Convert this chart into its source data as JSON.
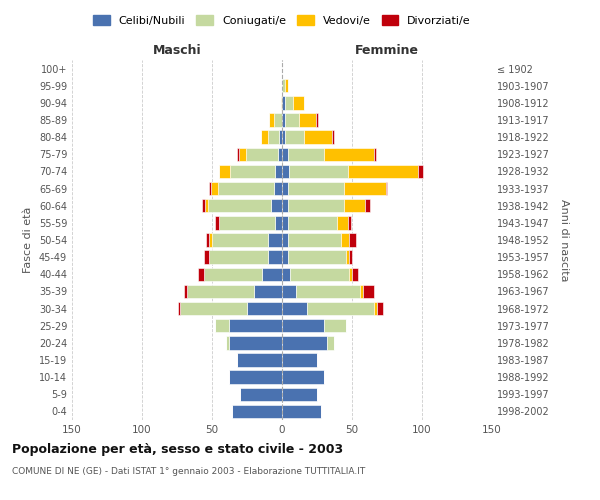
{
  "age_groups": [
    "0-4",
    "5-9",
    "10-14",
    "15-19",
    "20-24",
    "25-29",
    "30-34",
    "35-39",
    "40-44",
    "45-49",
    "50-54",
    "55-59",
    "60-64",
    "65-69",
    "70-74",
    "75-79",
    "80-84",
    "85-89",
    "90-94",
    "95-99",
    "100+"
  ],
  "birth_years": [
    "1998-2002",
    "1993-1997",
    "1988-1992",
    "1983-1987",
    "1978-1982",
    "1973-1977",
    "1968-1972",
    "1963-1967",
    "1958-1962",
    "1953-1957",
    "1948-1952",
    "1943-1947",
    "1938-1942",
    "1933-1937",
    "1928-1932",
    "1923-1927",
    "1918-1922",
    "1913-1917",
    "1908-1912",
    "1903-1907",
    "≤ 1902"
  ],
  "colors": {
    "celibi": "#4a72b0",
    "coniugati": "#c5d9a0",
    "vedovi": "#ffc000",
    "divorziati": "#c0000b"
  },
  "maschi": {
    "celibi": [
      36,
      30,
      38,
      32,
      38,
      38,
      25,
      20,
      14,
      10,
      10,
      5,
      8,
      6,
      5,
      3,
      2,
      0,
      0,
      0,
      0
    ],
    "coniugati": [
      0,
      0,
      0,
      0,
      2,
      10,
      48,
      48,
      42,
      42,
      40,
      40,
      45,
      40,
      32,
      23,
      8,
      6,
      0,
      0,
      0
    ],
    "vedovi": [
      0,
      0,
      0,
      0,
      0,
      0,
      0,
      0,
      0,
      0,
      2,
      0,
      2,
      5,
      8,
      5,
      5,
      3,
      1,
      0,
      0
    ],
    "divorziati": [
      0,
      0,
      0,
      0,
      0,
      0,
      1,
      2,
      4,
      4,
      2,
      3,
      2,
      1,
      0,
      1,
      0,
      0,
      0,
      0,
      0
    ]
  },
  "femmine": {
    "celibi": [
      28,
      25,
      30,
      25,
      32,
      30,
      18,
      10,
      6,
      4,
      4,
      4,
      4,
      4,
      5,
      4,
      2,
      2,
      2,
      0,
      0
    ],
    "coniugati": [
      0,
      0,
      0,
      0,
      5,
      16,
      48,
      46,
      42,
      42,
      38,
      35,
      40,
      40,
      42,
      26,
      14,
      10,
      6,
      2,
      0
    ],
    "vedovi": [
      0,
      0,
      0,
      0,
      0,
      0,
      2,
      2,
      2,
      2,
      6,
      8,
      15,
      30,
      50,
      36,
      20,
      12,
      8,
      2,
      0
    ],
    "divorziati": [
      0,
      0,
      0,
      0,
      0,
      0,
      4,
      8,
      4,
      2,
      5,
      2,
      4,
      1,
      4,
      1,
      1,
      2,
      0,
      0,
      0
    ]
  },
  "title_main": "Popolazione per età, sesso e stato civile - 2003",
  "subtitle": "COMUNE DI NE (GE) - Dati ISTAT 1° gennaio 2003 - Elaborazione TUTTITALIA.IT",
  "xlabel_left": "Maschi",
  "xlabel_right": "Femmine",
  "ylabel_left": "Fasce di età",
  "ylabel_right": "Anni di nascita",
  "legend_labels": [
    "Celibi/Nubili",
    "Coniugati/e",
    "Vedovi/e",
    "Divorziati/e"
  ],
  "xlim": 150,
  "background_color": "#ffffff",
  "grid_color": "#cccccc"
}
